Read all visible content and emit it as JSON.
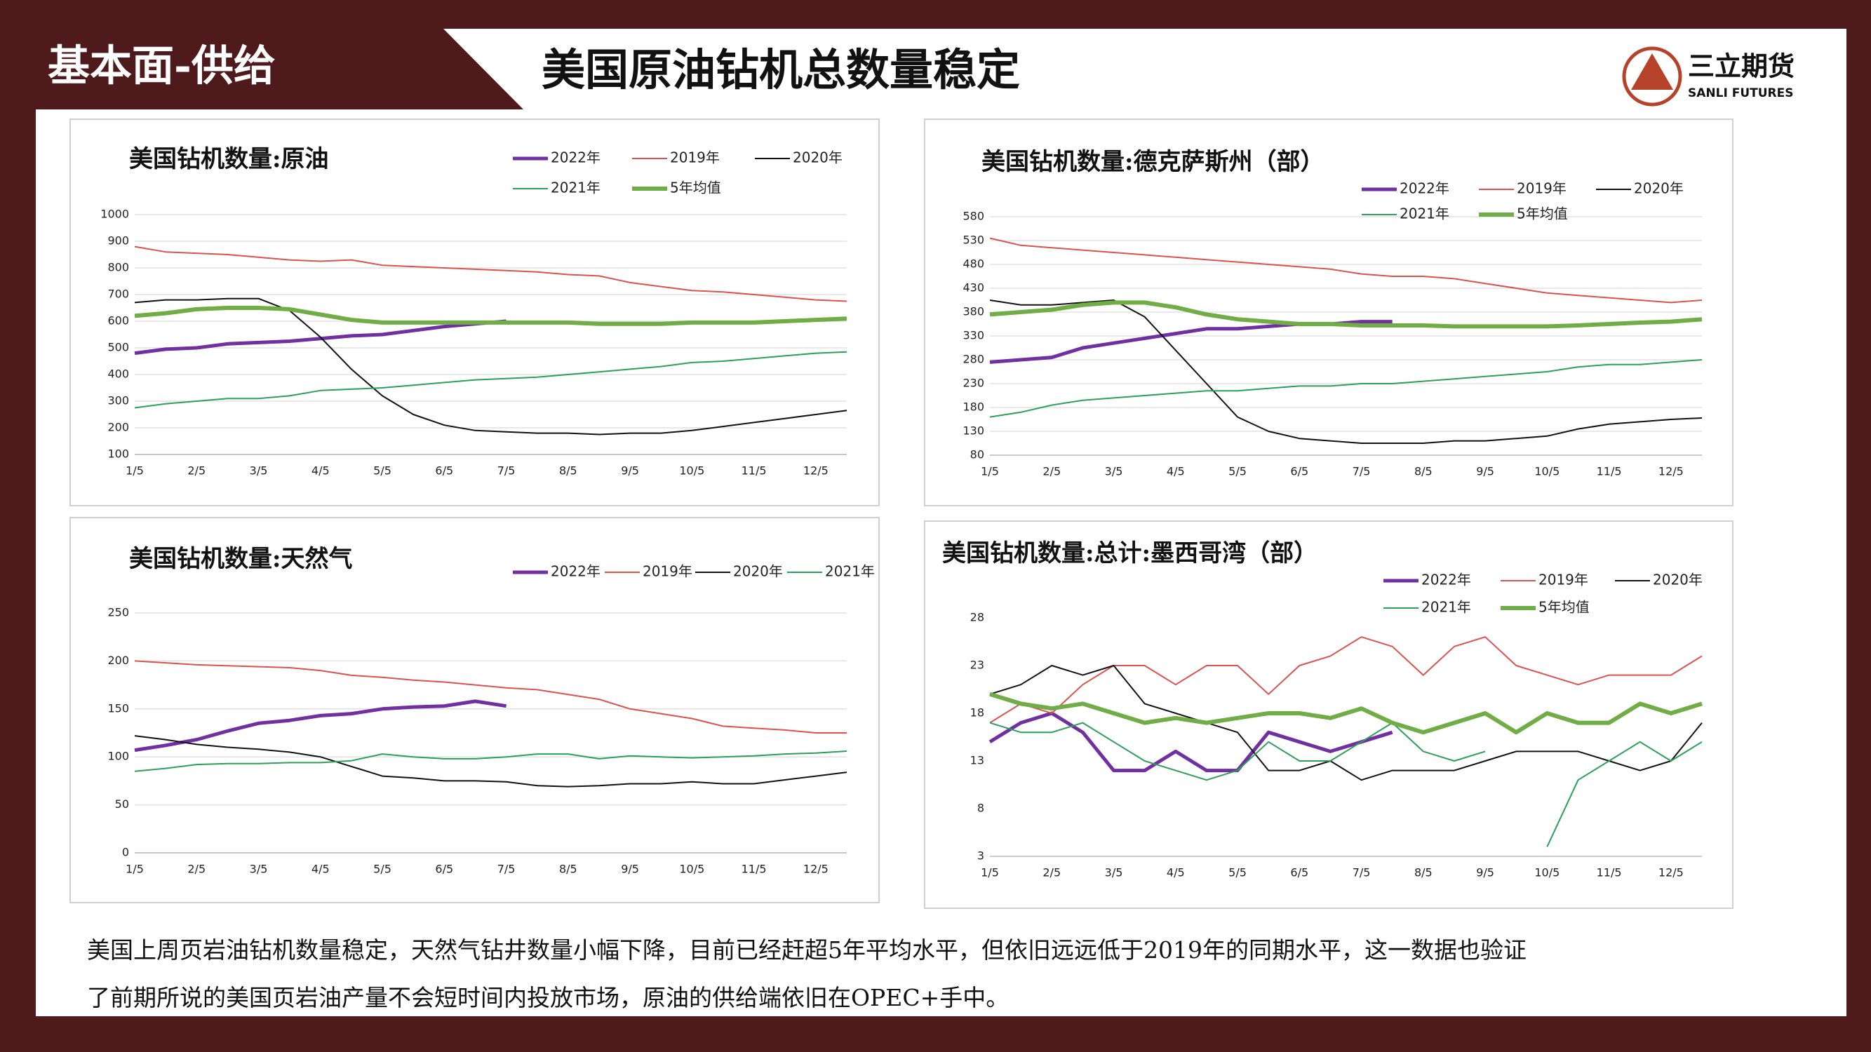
{
  "header": {
    "section": "基本面-供给",
    "title": "美国原油钻机总数量稳定",
    "logo_cn": "三立期货",
    "logo_en": "SANLI FUTURES"
  },
  "summary": [
    "美国上周页岩油钻机数量稳定，天然气钻井数量小幅下降，目前已经赶超5年平均水平，但依旧远远低于2019年的同期水平，这一数据也验证",
    "了前期所说的美国页岩油产量不会短时间内投放市场，原油的供给端依旧在OPEC+手中。"
  ],
  "chart_data": [
    {
      "type": "line",
      "title": "美国钻机数量:原油",
      "grid": true,
      "categories": [
        "1/5",
        null,
        "2/5",
        null,
        "3/5",
        null,
        "4/5",
        null,
        "5/5",
        null,
        "6/5",
        null,
        "7/5",
        null,
        "8/5",
        null,
        "9/5",
        null,
        "10/5",
        null,
        "11/5",
        null,
        "12/5",
        null
      ],
      "ylim": [
        100,
        1000
      ],
      "yticks": [
        100,
        200,
        300,
        400,
        500,
        600,
        700,
        800,
        900,
        1000
      ],
      "series": [
        {
          "name": "2022年",
          "color": "#7030a0",
          "linewidth": 5,
          "values": [
            480,
            495,
            500,
            515,
            520,
            525,
            535,
            545,
            550,
            565,
            580,
            590,
            600,
            null,
            null,
            null,
            null,
            null,
            null,
            null,
            null,
            null,
            null,
            null
          ]
        },
        {
          "name": "2019年",
          "color": "#d9534f",
          "linewidth": 2,
          "values": [
            880,
            860,
            855,
            850,
            840,
            830,
            825,
            830,
            810,
            805,
            800,
            795,
            790,
            785,
            775,
            770,
            745,
            730,
            715,
            710,
            700,
            690,
            680,
            675
          ]
        },
        {
          "name": "2020年",
          "color": "#111111",
          "linewidth": 2,
          "values": [
            670,
            680,
            680,
            685,
            685,
            640,
            540,
            420,
            320,
            250,
            210,
            190,
            185,
            180,
            180,
            175,
            180,
            180,
            190,
            205,
            220,
            235,
            250,
            265
          ]
        },
        {
          "name": "2021年",
          "color": "#2ca05a",
          "linewidth": 2,
          "values": [
            275,
            290,
            300,
            310,
            310,
            320,
            340,
            345,
            350,
            360,
            370,
            380,
            385,
            390,
            400,
            410,
            420,
            430,
            445,
            450,
            460,
            470,
            480,
            485
          ]
        },
        {
          "name": "5年均值",
          "color": "#70ad47",
          "linewidth": 6,
          "values": [
            620,
            630,
            645,
            650,
            650,
            645,
            625,
            605,
            595,
            595,
            595,
            595,
            595,
            595,
            595,
            590,
            590,
            590,
            595,
            595,
            595,
            600,
            605,
            610
          ]
        }
      ]
    },
    {
      "type": "line",
      "title": "美国钻机数量:德克萨斯州（部）",
      "grid": true,
      "categories": [
        "1/5",
        null,
        "2/5",
        null,
        "3/5",
        null,
        "4/5",
        null,
        "5/5",
        null,
        "6/5",
        null,
        "7/5",
        null,
        "8/5",
        null,
        "9/5",
        null,
        "10/5",
        null,
        "11/5",
        null,
        "12/5",
        null
      ],
      "ylim": [
        80,
        580
      ],
      "yticks": [
        80,
        130,
        180,
        230,
        280,
        330,
        380,
        430,
        480,
        530,
        580
      ],
      "series": [
        {
          "name": "2022年",
          "color": "#7030a0",
          "linewidth": 5,
          "values": [
            275,
            280,
            285,
            305,
            315,
            325,
            335,
            345,
            345,
            350,
            355,
            355,
            360,
            360,
            null,
            null,
            null,
            null,
            null,
            null,
            null,
            null,
            null,
            null
          ]
        },
        {
          "name": "2019年",
          "color": "#d9534f",
          "linewidth": 2,
          "values": [
            535,
            520,
            515,
            510,
            505,
            500,
            495,
            490,
            485,
            480,
            475,
            470,
            460,
            455,
            455,
            450,
            440,
            430,
            420,
            415,
            410,
            405,
            400,
            405
          ]
        },
        {
          "name": "2020年",
          "color": "#111111",
          "linewidth": 2,
          "values": [
            405,
            395,
            395,
            400,
            405,
            370,
            300,
            230,
            160,
            130,
            115,
            110,
            105,
            105,
            105,
            110,
            110,
            115,
            120,
            135,
            145,
            150,
            155,
            158
          ]
        },
        {
          "name": "2021年",
          "color": "#2ca05a",
          "linewidth": 2,
          "values": [
            160,
            170,
            185,
            195,
            200,
            205,
            210,
            215,
            215,
            220,
            225,
            225,
            230,
            230,
            235,
            240,
            245,
            250,
            255,
            265,
            270,
            270,
            275,
            280
          ]
        },
        {
          "name": "5年均值",
          "color": "#70ad47",
          "linewidth": 6,
          "values": [
            375,
            380,
            385,
            395,
            400,
            400,
            390,
            375,
            365,
            360,
            355,
            355,
            352,
            352,
            352,
            350,
            350,
            350,
            350,
            352,
            355,
            358,
            360,
            365
          ]
        }
      ]
    },
    {
      "type": "line",
      "title": "美国钻机数量:天然气",
      "grid": true,
      "categories": [
        "1/5",
        null,
        "2/5",
        null,
        "3/5",
        null,
        "4/5",
        null,
        "5/5",
        null,
        "6/5",
        null,
        "7/5",
        null,
        "8/5",
        null,
        "9/5",
        null,
        "10/5",
        null,
        "11/5",
        null,
        "12/5",
        null
      ],
      "ylim": [
        0,
        250
      ],
      "yticks": [
        0,
        50,
        100,
        150,
        200,
        250
      ],
      "series": [
        {
          "name": "2022年",
          "color": "#7030a0",
          "linewidth": 5,
          "values": [
            107,
            112,
            118,
            127,
            135,
            138,
            143,
            145,
            150,
            152,
            153,
            158,
            153,
            null,
            null,
            null,
            null,
            null,
            null,
            null,
            null,
            null,
            null,
            null
          ]
        },
        {
          "name": "2019年",
          "color": "#d9534f",
          "linewidth": 2,
          "values": [
            200,
            198,
            196,
            195,
            194,
            193,
            190,
            185,
            183,
            180,
            178,
            175,
            172,
            170,
            165,
            160,
            150,
            145,
            140,
            132,
            130,
            128,
            125,
            125
          ]
        },
        {
          "name": "2020年",
          "color": "#111111",
          "linewidth": 2,
          "values": [
            122,
            118,
            113,
            110,
            108,
            105,
            100,
            90,
            80,
            78,
            75,
            75,
            74,
            70,
            69,
            70,
            72,
            72,
            74,
            72,
            72,
            76,
            80,
            84
          ]
        },
        {
          "name": "2021年",
          "color": "#2ca05a",
          "linewidth": 2,
          "values": [
            85,
            88,
            92,
            93,
            93,
            94,
            94,
            96,
            103,
            100,
            98,
            98,
            100,
            103,
            103,
            98,
            101,
            100,
            99,
            100,
            101,
            103,
            104,
            106
          ]
        }
      ]
    },
    {
      "type": "line",
      "title": "美国钻机数量:总计:墨西哥湾（部）",
      "grid": false,
      "categories": [
        "1/5",
        null,
        "2/5",
        null,
        "3/5",
        null,
        "4/5",
        null,
        "5/5",
        null,
        "6/5",
        null,
        "7/5",
        null,
        "8/5",
        null,
        "9/5",
        null,
        "10/5",
        null,
        "11/5",
        null,
        "12/5",
        null
      ],
      "ylim": [
        3,
        28
      ],
      "yticks": [
        3,
        8,
        13,
        18,
        23,
        28
      ],
      "series": [
        {
          "name": "2022年",
          "color": "#7030a0",
          "linewidth": 5,
          "values": [
            15,
            17,
            18,
            16,
            12,
            12,
            14,
            12,
            12,
            16,
            15,
            14,
            15,
            16,
            null,
            null,
            null,
            null,
            null,
            null,
            null,
            null,
            null,
            null
          ]
        },
        {
          "name": "2019年",
          "color": "#d9534f",
          "linewidth": 2,
          "values": [
            17,
            19,
            18,
            21,
            23,
            23,
            21,
            23,
            23,
            20,
            23,
            24,
            26,
            25,
            22,
            25,
            26,
            23,
            22,
            21,
            22,
            22,
            22,
            24
          ]
        },
        {
          "name": "2020年",
          "color": "#111111",
          "linewidth": 2,
          "values": [
            20,
            21,
            23,
            22,
            23,
            19,
            18,
            17,
            16,
            12,
            12,
            13,
            11,
            12,
            12,
            12,
            13,
            14,
            14,
            14,
            13,
            12,
            13,
            17
          ]
        },
        {
          "name": "2021年",
          "color": "#2ca05a",
          "linewidth": 2,
          "values": [
            17,
            16,
            16,
            17,
            15,
            13,
            12,
            11,
            12,
            15,
            13,
            13,
            15,
            17,
            14,
            13,
            14,
            null,
            4,
            11,
            13,
            15,
            13,
            15
          ]
        },
        {
          "name": "5年均值",
          "color": "#70ad47",
          "linewidth": 6,
          "values": [
            20,
            19,
            18.5,
            19,
            18,
            17,
            17.5,
            17,
            17.5,
            18,
            18,
            17.5,
            18.5,
            17,
            16,
            17,
            18,
            16,
            18,
            17,
            17,
            19,
            18,
            19
          ]
        }
      ]
    }
  ]
}
